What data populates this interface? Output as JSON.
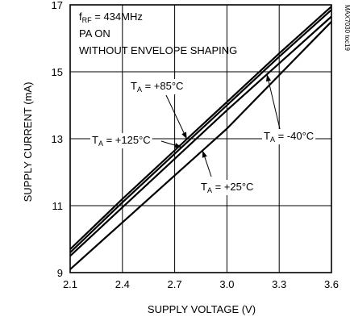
{
  "chart_data": {
    "type": "line",
    "xlabel": "SUPPLY VOLTAGE (V)",
    "ylabel": "SUPPLY CURRENT (mA)",
    "xlim": [
      2.1,
      3.6
    ],
    "ylim": [
      9,
      17
    ],
    "xticks": [
      "2.1",
      "2.4",
      "2.7",
      "3.0",
      "3.3",
      "3.6"
    ],
    "yticks": [
      "9",
      "11",
      "13",
      "15",
      "17"
    ],
    "grid": true,
    "annotations": [
      "f",
      "RF",
      " = 434MHz",
      "PA ON",
      "WITHOUT ENVELOPE SHAPING"
    ],
    "figure_code": "MAX7030 toc19",
    "series": [
      {
        "name": "T",
        "sub": "A",
        "suffix": " = +85°C",
        "x": [
          2.1,
          2.4,
          2.7,
          3.0,
          3.3,
          3.6
        ],
        "y": [
          9.7,
          11.2,
          12.65,
          14.1,
          15.55,
          16.95
        ]
      },
      {
        "name": "T",
        "sub": "A",
        "suffix": " = +125°C",
        "x": [
          2.1,
          2.4,
          2.7,
          3.0,
          3.3,
          3.6
        ],
        "y": [
          9.6,
          11.1,
          12.55,
          14.0,
          15.45,
          16.85
        ]
      },
      {
        "name": "T",
        "sub": "A",
        "suffix": " = -40°C",
        "x": [
          2.1,
          2.4,
          2.7,
          3.0,
          3.3,
          3.6
        ],
        "y": [
          9.5,
          10.95,
          12.4,
          13.85,
          15.25,
          16.65
        ]
      },
      {
        "name": "T",
        "sub": "A",
        "suffix": " = +25°C",
        "x": [
          2.1,
          2.4,
          2.7,
          3.0,
          3.3,
          3.6
        ],
        "y": [
          9.1,
          10.5,
          11.9,
          13.3,
          14.9,
          16.5
        ]
      }
    ]
  }
}
